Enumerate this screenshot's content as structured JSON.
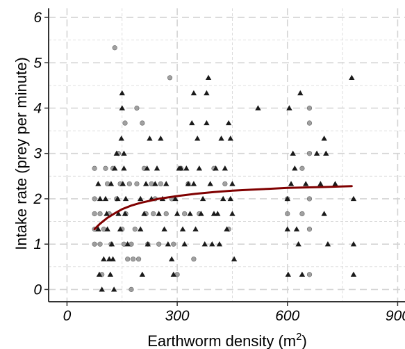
{
  "chart_data": {
    "type": "scatter",
    "title": "",
    "xlabel_text": "Earthworm density (m",
    "xlabel_sup": "2",
    "xlabel_close": ")",
    "ylabel": "Intake rate (prey per minute)",
    "xlim": [
      -50,
      920
    ],
    "ylim": [
      -0.27,
      6.2
    ],
    "x_ticks": [
      0,
      300,
      600,
      900
    ],
    "x_tick_labels": [
      "0",
      "300",
      "600",
      "900"
    ],
    "y_ticks": [
      0,
      1,
      2,
      3,
      4,
      5,
      6
    ],
    "y_tick_labels": [
      "0",
      "1",
      "2",
      "3",
      "4",
      "5",
      "6"
    ],
    "grid": true,
    "legend": "none",
    "colors": {
      "circle": "#8a8a8a",
      "triangle": "#1a1a1a",
      "curve": "#800000",
      "grid": "#d4d4d4",
      "axis": "#333333"
    },
    "series": [
      {
        "marker": "circle",
        "points": [
          [
            75,
            2.67
          ],
          [
            75,
            2.0
          ],
          [
            75,
            1.67
          ],
          [
            75,
            1.33
          ],
          [
            75,
            1.0
          ],
          [
            90,
            1.67
          ],
          [
            90,
            1.0
          ],
          [
            95,
            0.33
          ],
          [
            100,
            1.33
          ],
          [
            105,
            2.67
          ],
          [
            110,
            2.33
          ],
          [
            115,
            1.67
          ],
          [
            120,
            1.0
          ],
          [
            125,
            2.67
          ],
          [
            130,
            5.33
          ],
          [
            135,
            2.0
          ],
          [
            140,
            3.0
          ],
          [
            145,
            2.33
          ],
          [
            150,
            1.33
          ],
          [
            155,
            1.0
          ],
          [
            158,
            3.67
          ],
          [
            160,
            1.67
          ],
          [
            165,
            0.67
          ],
          [
            170,
            2.33
          ],
          [
            175,
            1.0
          ],
          [
            175,
            0.0
          ],
          [
            180,
            0.67
          ],
          [
            185,
            1.33
          ],
          [
            190,
            4.0
          ],
          [
            190,
            2.33
          ],
          [
            195,
            0.67
          ],
          [
            205,
            3.67
          ],
          [
            210,
            2.67
          ],
          [
            215,
            1.67
          ],
          [
            220,
            1.0
          ],
          [
            230,
            2.33
          ],
          [
            235,
            1.67
          ],
          [
            240,
            2.0
          ],
          [
            250,
            1.0
          ],
          [
            255,
            2.33
          ],
          [
            270,
            1.67
          ],
          [
            280,
            4.67
          ],
          [
            285,
            2.0
          ],
          [
            290,
            1.0
          ],
          [
            300,
            0.33
          ],
          [
            310,
            2.67
          ],
          [
            320,
            1.67
          ],
          [
            330,
            2.33
          ],
          [
            345,
            0.67
          ],
          [
            360,
            1.67
          ],
          [
            400,
            2.67
          ],
          [
            430,
            2.33
          ],
          [
            440,
            1.33
          ],
          [
            600,
            1.67
          ],
          [
            600,
            2.0
          ],
          [
            640,
            2.67
          ],
          [
            640,
            1.67
          ],
          [
            660,
            1.33
          ],
          [
            660,
            2.0
          ],
          [
            660,
            3.67
          ],
          [
            660,
            4.0
          ],
          [
            660,
            3.0
          ],
          [
            660,
            0.33
          ]
        ]
      },
      {
        "marker": "triangle",
        "points": [
          [
            85,
            2.33
          ],
          [
            85,
            1.33
          ],
          [
            88,
            0.33
          ],
          [
            90,
            2.0
          ],
          [
            95,
            0.0
          ],
          [
            100,
            0.67
          ],
          [
            105,
            2.0
          ],
          [
            108,
            1.67
          ],
          [
            110,
            1.33
          ],
          [
            115,
            0.67
          ],
          [
            118,
            0.33
          ],
          [
            120,
            2.33
          ],
          [
            122,
            1.0
          ],
          [
            125,
            0.67
          ],
          [
            128,
            0.0
          ],
          [
            130,
            2.67
          ],
          [
            135,
            3.0
          ],
          [
            138,
            2.0
          ],
          [
            140,
            1.67
          ],
          [
            145,
            1.33
          ],
          [
            148,
            3.33
          ],
          [
            150,
            4.33
          ],
          [
            150,
            4.0
          ],
          [
            152,
            2.33
          ],
          [
            155,
            2.67
          ],
          [
            155,
            3.0
          ],
          [
            158,
            1.67
          ],
          [
            160,
            2.0
          ],
          [
            165,
            1.0
          ],
          [
            200,
            2.0
          ],
          [
            200,
            1.33
          ],
          [
            205,
            0.33
          ],
          [
            210,
            1.67
          ],
          [
            215,
            2.33
          ],
          [
            218,
            2.67
          ],
          [
            220,
            1.0
          ],
          [
            225,
            3.33
          ],
          [
            230,
            2.0
          ],
          [
            240,
            2.33
          ],
          [
            245,
            2.67
          ],
          [
            250,
            1.67
          ],
          [
            255,
            3.33
          ],
          [
            260,
            2.0
          ],
          [
            265,
            1.33
          ],
          [
            270,
            2.33
          ],
          [
            275,
            1.0
          ],
          [
            285,
            0.67
          ],
          [
            290,
            0.33
          ],
          [
            295,
            2.0
          ],
          [
            300,
            1.67
          ],
          [
            305,
            2.67
          ],
          [
            310,
            2.67
          ],
          [
            315,
            1.33
          ],
          [
            320,
            1.0
          ],
          [
            325,
            2.67
          ],
          [
            330,
            2.33
          ],
          [
            335,
            1.67
          ],
          [
            340,
            3.67
          ],
          [
            345,
            4.33
          ],
          [
            345,
            2.33
          ],
          [
            350,
            1.33
          ],
          [
            355,
            3.33
          ],
          [
            360,
            2.67
          ],
          [
            365,
            1.67
          ],
          [
            370,
            2.0
          ],
          [
            375,
            1.0
          ],
          [
            380,
            3.67
          ],
          [
            380,
            4.33
          ],
          [
            385,
            4.67
          ],
          [
            390,
            2.33
          ],
          [
            395,
            1.0
          ],
          [
            400,
            1.67
          ],
          [
            405,
            2.67
          ],
          [
            410,
            1.67
          ],
          [
            415,
            1.0
          ],
          [
            420,
            3.33
          ],
          [
            425,
            2.0
          ],
          [
            430,
            2.67
          ],
          [
            435,
            1.33
          ],
          [
            440,
            3.67
          ],
          [
            445,
            3.33
          ],
          [
            445,
            2.0
          ],
          [
            450,
            1.67
          ],
          [
            455,
            0.67
          ],
          [
            450,
            2.33
          ],
          [
            520,
            4.0
          ],
          [
            600,
            2.0
          ],
          [
            600,
            1.33
          ],
          [
            602,
            0.33
          ],
          [
            605,
            4.0
          ],
          [
            610,
            2.33
          ],
          [
            615,
            3.0
          ],
          [
            620,
            2.67
          ],
          [
            625,
            1.33
          ],
          [
            630,
            1.0
          ],
          [
            635,
            4.33
          ],
          [
            640,
            0.33
          ],
          [
            650,
            2.33
          ],
          [
            680,
            3.0
          ],
          [
            690,
            2.33
          ],
          [
            700,
            3.33
          ],
          [
            700,
            1.67
          ],
          [
            705,
            3.0
          ],
          [
            710,
            1.0
          ],
          [
            730,
            2.33
          ],
          [
            775,
            4.67
          ],
          [
            780,
            2.0
          ],
          [
            780,
            1.0
          ],
          [
            780,
            0.33
          ]
        ]
      }
    ],
    "fit_curve": {
      "type": "saturating",
      "points": [
        [
          75,
          1.33
        ],
        [
          90,
          1.45
        ],
        [
          110,
          1.58
        ],
        [
          130,
          1.68
        ],
        [
          150,
          1.77
        ],
        [
          175,
          1.85
        ],
        [
          200,
          1.91
        ],
        [
          250,
          2.0
        ],
        [
          300,
          2.06
        ],
        [
          350,
          2.11
        ],
        [
          400,
          2.15
        ],
        [
          450,
          2.18
        ],
        [
          500,
          2.2
        ],
        [
          550,
          2.22
        ],
        [
          600,
          2.24
        ],
        [
          650,
          2.25
        ],
        [
          700,
          2.26
        ],
        [
          775,
          2.28
        ]
      ]
    }
  }
}
